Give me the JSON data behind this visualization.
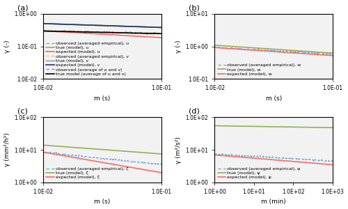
{
  "panels": [
    {
      "label": "(a)",
      "xlabel": "m (s)",
      "ylabel": "γ (-)",
      "xlim": [
        0.01,
        0.1
      ],
      "ylim": [
        0.01,
        1.0
      ],
      "yticks": [
        0.01,
        0.1,
        1.0
      ],
      "xticks": [
        0.01,
        0.1
      ],
      "series": [
        {
          "x0": 0.01,
          "x1": 0.1,
          "y0": 0.3,
          "y1": 0.245,
          "color": "#5B9BD5",
          "style": "--",
          "lw": 0.8,
          "label": "observed (averaged empirical), u",
          "noisy": true
        },
        {
          "x0": 0.01,
          "x1": 0.1,
          "y0": 0.5,
          "y1": 0.38,
          "color": "#92B050",
          "style": "-",
          "lw": 1.2,
          "label": "true (model), u",
          "noisy": false
        },
        {
          "x0": 0.01,
          "x1": 0.1,
          "y0": 0.3,
          "y1": 0.185,
          "color": "#FF6666",
          "style": "-",
          "lw": 1.2,
          "label": "expected (model), u",
          "noisy": false
        },
        {
          "x0": 0.01,
          "x1": 0.1,
          "y0": 0.295,
          "y1": 0.245,
          "color": "#FFC000",
          "style": "--",
          "lw": 0.8,
          "label": "observed (averaged empirical), v",
          "noisy": true
        },
        {
          "x0": 0.01,
          "x1": 0.1,
          "y0": 0.5,
          "y1": 0.38,
          "color": "#6699CC",
          "style": "-",
          "lw": 1.0,
          "label": "true (model), v",
          "noisy": false
        },
        {
          "x0": 0.01,
          "x1": 0.1,
          "y0": 0.5,
          "y1": 0.38,
          "color": "#1F3864",
          "style": "-",
          "lw": 1.2,
          "label": "expected (model), v",
          "noisy": false
        },
        {
          "x0": 0.01,
          "x1": 0.1,
          "y0": 0.295,
          "y1": 0.245,
          "color": "#808080",
          "style": "--",
          "lw": 0.8,
          "label": "observed (average of u and v)",
          "noisy": true
        },
        {
          "x0": 0.01,
          "x1": 0.1,
          "y0": 0.295,
          "y1": 0.245,
          "color": "#000000",
          "style": "-",
          "lw": 1.2,
          "label": "true model (average of u and v)",
          "noisy": false
        }
      ]
    },
    {
      "label": "(b)",
      "xlabel": "m (s)",
      "ylabel": "γ (-)",
      "xlim": [
        0.01,
        0.1
      ],
      "ylim": [
        0.1,
        10.0
      ],
      "yticks": [
        0.1,
        1.0,
        10.0
      ],
      "xticks": [
        0.01,
        0.1
      ],
      "series": [
        {
          "x0": 0.01,
          "x1": 0.1,
          "y0": 0.92,
          "y1": 0.58,
          "color": "#5B9BD5",
          "style": "--",
          "lw": 0.8,
          "label": "observed (averaged empirical), w",
          "noisy": true
        },
        {
          "x0": 0.01,
          "x1": 0.1,
          "y0": 1.08,
          "y1": 0.62,
          "color": "#92B050",
          "style": "-",
          "lw": 1.2,
          "label": "true (model), w",
          "noisy": false
        },
        {
          "x0": 0.01,
          "x1": 0.1,
          "y0": 0.92,
          "y1": 0.52,
          "color": "#FF6666",
          "style": "-",
          "lw": 1.2,
          "label": "expected (model), w",
          "noisy": false
        }
      ]
    },
    {
      "label": "(c)",
      "xlabel": "m (s)",
      "ylabel": "γ (mm²/h²)",
      "xlim": [
        0.01,
        0.1
      ],
      "ylim": [
        1.0,
        100.0
      ],
      "yticks": [
        1.0,
        10.0,
        100.0
      ],
      "xticks": [
        0.01,
        0.1
      ],
      "series": [
        {
          "x0": 0.01,
          "x1": 0.1,
          "y0": 8.5,
          "y1": 3.5,
          "color": "#5B9BD5",
          "style": "--",
          "lw": 0.8,
          "label": "observed (averaged empirical), ζ",
          "noisy": true
        },
        {
          "x0": 0.01,
          "x1": 0.1,
          "y0": 14.0,
          "y1": 7.5,
          "color": "#92B050",
          "style": "-",
          "lw": 1.2,
          "label": "true (model), ζ",
          "noisy": false
        },
        {
          "x0": 0.01,
          "x1": 0.1,
          "y0": 8.5,
          "y1": 2.0,
          "color": "#FF6666",
          "style": "-",
          "lw": 1.2,
          "label": "expected (model), ζ",
          "noisy": false
        }
      ]
    },
    {
      "label": "(d)",
      "xlabel": "m (min)",
      "ylabel": "γ (m²/s²)",
      "xlim": [
        1.0,
        1000.0
      ],
      "ylim": [
        1.0,
        100.0
      ],
      "yticks": [
        1.0,
        10.0,
        100.0
      ],
      "xticks": [
        1.0,
        10.0,
        100.0,
        1000.0
      ],
      "series": [
        {
          "x0": 1.0,
          "x1": 1000.0,
          "y0": 7.5,
          "y1": 4.5,
          "color": "#5B9BD5",
          "style": "--",
          "lw": 0.8,
          "label": "observed (averaged empirical), ψ",
          "noisy": true
        },
        {
          "x0": 1.0,
          "x1": 1000.0,
          "y0": 55.0,
          "y1": 48.0,
          "color": "#92B050",
          "style": "-",
          "lw": 1.2,
          "label": "true (model), ψ",
          "noisy": false
        },
        {
          "x0": 1.0,
          "x1": 1000.0,
          "y0": 7.0,
          "y1": 3.5,
          "color": "#FF6666",
          "style": "-",
          "lw": 1.2,
          "label": "expected (model), ψ",
          "noisy": false
        }
      ]
    }
  ],
  "bg_color": "#FFFFFF",
  "plot_bg": "#F2F2F2",
  "panel_label_fontsize": 8,
  "legend_fontsize": 4.5,
  "tick_fontsize": 5.5,
  "axis_label_fontsize": 6.5
}
